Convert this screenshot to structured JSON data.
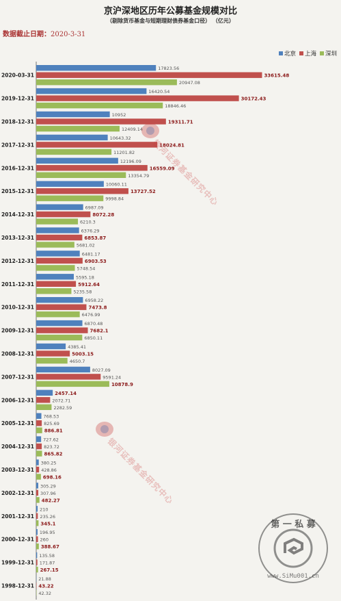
{
  "title": "京沪深地区历年公募基金规模对比",
  "subtitle": "（剔除货币基金与短期理财债券基金口径）    （亿元）",
  "as_of_label": "数据截止日期：",
  "as_of_value": "2020-3-31",
  "watermark_text": "银河证券基金研究中心",
  "seal_text_top": "第 一 私 募",
  "seal_text_bottom": "www.SiMu001.cn",
  "colors": {
    "beijing": "#4f81bd",
    "shanghai": "#c0504d",
    "shenzhen": "#9bbb59",
    "bg": "#f4f3ef"
  },
  "chart_data": {
    "type": "bar",
    "orientation": "horizontal",
    "unit": "亿元",
    "categories": [
      "2020-03-31",
      "2019-12-31",
      "2018-12-31",
      "2017-12-31",
      "2016-12-31",
      "2015-12-31",
      "2014-12-31",
      "2013-12-31",
      "2012-12-31",
      "2011-12-31",
      "2010-12-31",
      "2009-12-31",
      "2008-12-31",
      "2007-12-31",
      "2006-12-31",
      "2005-12-31",
      "2004-12-31",
      "2003-12-31",
      "2002-12-31",
      "2001-12-31",
      "2000-12-31",
      "1999-12-31",
      "1998-12-31"
    ],
    "series": [
      {
        "name": "北京",
        "color": "#4f81bd",
        "values": [
          17823.56,
          16420.54,
          10952,
          10643.32,
          12196.09,
          10060.11,
          6987.09,
          6376.29,
          6481.17,
          5595.18,
          6958.22,
          6870.48,
          4385.41,
          8027.09,
          2457.14,
          768.53,
          727.62,
          380.25,
          305.29,
          210,
          196.95,
          135.58,
          21.88
        ],
        "labels": [
          "17823.56",
          "16420.54",
          "10952",
          "10643.32",
          "12196.09",
          "10060.11",
          "6987.09",
          "6376.29",
          "6481.17",
          "5595.18",
          "6958.22",
          "6870.48",
          "4385.41",
          "8027.09",
          "2457.14",
          "768.53",
          "727.62",
          "380.25",
          "305.29",
          "210",
          "196.95",
          "135.58",
          "21.88"
        ]
      },
      {
        "name": "上海",
        "color": "#c0504d",
        "values": [
          33615.48,
          30172.43,
          19311.71,
          18024.81,
          16559.09,
          13727.52,
          8072.28,
          6853.87,
          6903.53,
          5912.64,
          7473.8,
          7682.1,
          5003.15,
          9591.24,
          2072.71,
          825.69,
          823.72,
          428.86,
          307.96,
          235.26,
          260,
          171.87,
          43.22
        ],
        "labels": [
          "33615.48",
          "30172.43",
          "19311.71",
          "18024.81",
          "16559.09",
          "13727.52",
          "8072.28",
          "6853.87",
          "6903.53",
          "5912.64",
          "7473.8",
          "7682.1",
          "5003.15",
          "9591.24",
          "2072.71",
          "825.69",
          "823.72",
          "428.86",
          "307.96",
          "235.26",
          "260",
          "171.87",
          "43.22"
        ]
      },
      {
        "name": "深圳",
        "color": "#9bbb59",
        "values": [
          20947.08,
          18846.46,
          12409.14,
          11201.82,
          13354.79,
          9998.84,
          6210.3,
          5681.02,
          5748.54,
          5235.58,
          6476.99,
          6850.11,
          4650.7,
          10878.9,
          2282.59,
          886.81,
          865.82,
          698.16,
          482.27,
          345.1,
          388.67,
          267.15,
          42.32
        ],
        "labels": [
          "20947.08",
          "18846.46",
          "12409.14",
          "11201.82",
          "13354.79",
          "9998.84",
          "6210.3",
          "5681.02",
          "5748.54",
          "5235.58",
          "6476.99",
          "6850.11",
          "4650.7",
          "10878.9",
          "2282.59",
          "886.81",
          "865.82",
          "698.16",
          "482.27",
          "345.1",
          "388.67",
          "267.15",
          "42.32"
        ]
      }
    ],
    "bold_max_label": true,
    "grid": false,
    "legend": "top-right",
    "xlim": [
      0,
      37000
    ]
  }
}
